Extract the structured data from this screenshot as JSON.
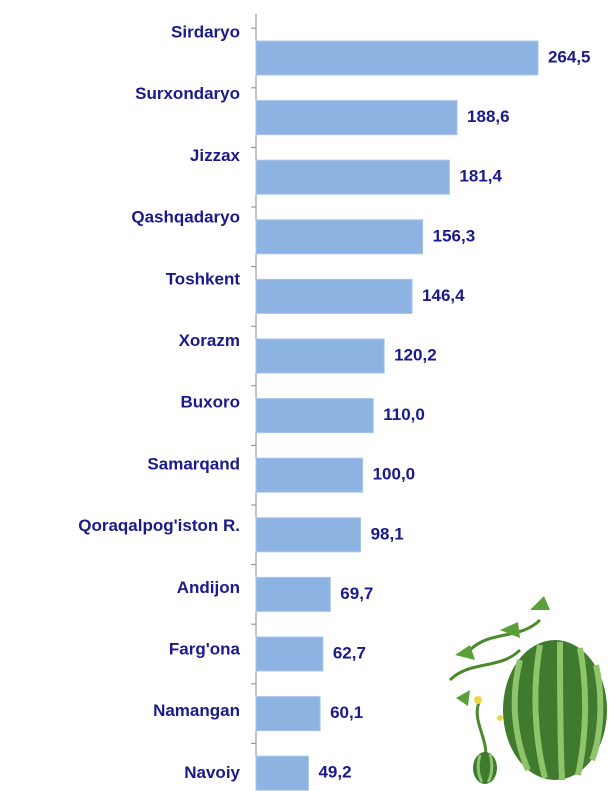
{
  "chart_data": {
    "type": "bar",
    "orientation": "horizontal",
    "categories": [
      "Sirdaryo",
      "Surxondaryo",
      "Jizzax",
      "Qashqadaryo",
      "Toshkent",
      "Xorazm",
      "Buxoro",
      "Samarqand",
      "Qoraqalpog'iston R.",
      "Andijon",
      "Farg'ona",
      "Namangan",
      "Navoiy"
    ],
    "values": [
      264.5,
      188.6,
      181.4,
      156.3,
      146.4,
      120.2,
      110.0,
      100.0,
      98.1,
      69.7,
      62.7,
      60.1,
      49.2
    ],
    "value_labels": [
      "264,5",
      "188,6",
      "181,4",
      "156,3",
      "146,4",
      "120,2",
      "110,0",
      "100,0",
      "98,1",
      "69,7",
      "62,7",
      "60,1",
      "49,2"
    ],
    "color": "#8db3e2"
  }
}
